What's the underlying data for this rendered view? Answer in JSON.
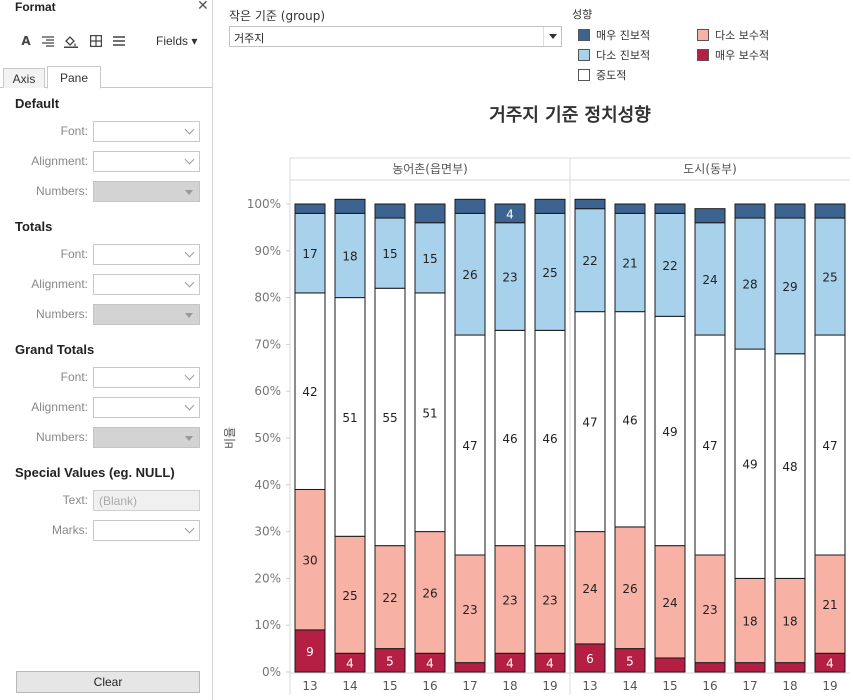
{
  "format_panel": {
    "title": "Format",
    "close_icon": "close-icon",
    "toolbar": {
      "icons": [
        "font-icon",
        "align-icon",
        "shading-icon",
        "borders-icon",
        "lines-icon"
      ],
      "fields_label": "Fields ▾"
    },
    "tabs": [
      "Axis",
      "Pane"
    ],
    "active_tab": "Pane",
    "sections": [
      {
        "title": "Default",
        "rows": [
          {
            "label": "Font:",
            "disabled": false
          },
          {
            "label": "Alignment:",
            "disabled": false
          },
          {
            "label": "Numbers:",
            "disabled": true
          }
        ]
      },
      {
        "title": "Totals",
        "rows": [
          {
            "label": "Font:",
            "disabled": false
          },
          {
            "label": "Alignment:",
            "disabled": false
          },
          {
            "label": "Numbers:",
            "disabled": true
          }
        ]
      },
      {
        "title": "Grand Totals",
        "rows": [
          {
            "label": "Font:",
            "disabled": false
          },
          {
            "label": "Alignment:",
            "disabled": false
          },
          {
            "label": "Numbers:",
            "disabled": true
          }
        ]
      }
    ],
    "special": {
      "title": "Special Values (eg. NULL)",
      "text_label": "Text:",
      "text_placeholder": "(Blank)",
      "marks_label": "Marks:"
    },
    "clear_label": "Clear"
  },
  "filter": {
    "label": "작은 기준 (group)",
    "value": "거주지"
  },
  "legend": {
    "title": "성향",
    "items": [
      {
        "label": "매우 진보적",
        "color": "#3d6491"
      },
      {
        "label": "다소 진보적",
        "color": "#a8d1ec"
      },
      {
        "label": "중도적",
        "color": "#ffffff"
      },
      {
        "label": "다소 보수적",
        "color": "#f8b1a5"
      },
      {
        "label": "매우 보수적",
        "color": "#b51f44"
      }
    ]
  },
  "chart_data": {
    "type": "bar",
    "stacked": true,
    "title": "거주지 기준 정치성향",
    "ylabel": "비율",
    "ylim": [
      0,
      100
    ],
    "yticks": [
      "0%",
      "10%",
      "20%",
      "30%",
      "40%",
      "50%",
      "60%",
      "70%",
      "80%",
      "90%",
      "100%"
    ],
    "panels": [
      {
        "name": "농어촌(읍면부)",
        "categories": [
          "13",
          "14",
          "15",
          "16",
          "17",
          "18",
          "19"
        ]
      },
      {
        "name": "도시(동부)",
        "categories": [
          "13",
          "14",
          "15",
          "16",
          "17",
          "18",
          "19"
        ]
      }
    ],
    "series": [
      {
        "name": "매우 보수적",
        "color": "#b51f44",
        "values": [
          [
            9,
            4,
            5,
            4,
            2,
            4,
            4
          ],
          [
            6,
            5,
            3,
            2,
            2,
            2,
            4
          ]
        ],
        "labels": [
          [
            "9",
            "4",
            "5",
            "4",
            "",
            "4",
            "4"
          ],
          [
            "6",
            "5",
            "",
            "",
            "",
            "",
            "4"
          ]
        ]
      },
      {
        "name": "다소 보수적",
        "color": "#f8b1a5",
        "values": [
          [
            30,
            25,
            22,
            26,
            23,
            23,
            23
          ],
          [
            24,
            26,
            24,
            23,
            18,
            18,
            21
          ]
        ],
        "labels": [
          [
            "30",
            "25",
            "22",
            "26",
            "23",
            "23",
            "23"
          ],
          [
            "24",
            "26",
            "24",
            "23",
            "18",
            "18",
            "21"
          ]
        ]
      },
      {
        "name": "중도적",
        "color": "#ffffff",
        "values": [
          [
            42,
            51,
            55,
            51,
            47,
            46,
            46
          ],
          [
            47,
            46,
            49,
            47,
            49,
            48,
            47
          ]
        ],
        "labels": [
          [
            "42",
            "51",
            "55",
            "51",
            "47",
            "46",
            "46"
          ],
          [
            "47",
            "46",
            "49",
            "47",
            "49",
            "48",
            "47"
          ]
        ]
      },
      {
        "name": "다소 진보적",
        "color": "#a8d1ec",
        "values": [
          [
            17,
            18,
            15,
            15,
            26,
            23,
            25
          ],
          [
            22,
            21,
            22,
            24,
            28,
            29,
            25
          ]
        ],
        "labels": [
          [
            "17",
            "18",
            "15",
            "15",
            "26",
            "23",
            "25"
          ],
          [
            "22",
            "21",
            "22",
            "24",
            "28",
            "29",
            "25"
          ]
        ]
      },
      {
        "name": "매우 진보적",
        "color": "#3d6491",
        "values": [
          [
            2,
            3,
            3,
            4,
            3,
            4,
            3
          ],
          [
            2,
            2,
            2,
            3,
            3,
            3,
            3
          ]
        ],
        "labels": [
          [
            "",
            "",
            "",
            "",
            "",
            "4",
            ""
          ],
          [
            "",
            "",
            "",
            "",
            "",
            "",
            ""
          ]
        ]
      }
    ]
  }
}
